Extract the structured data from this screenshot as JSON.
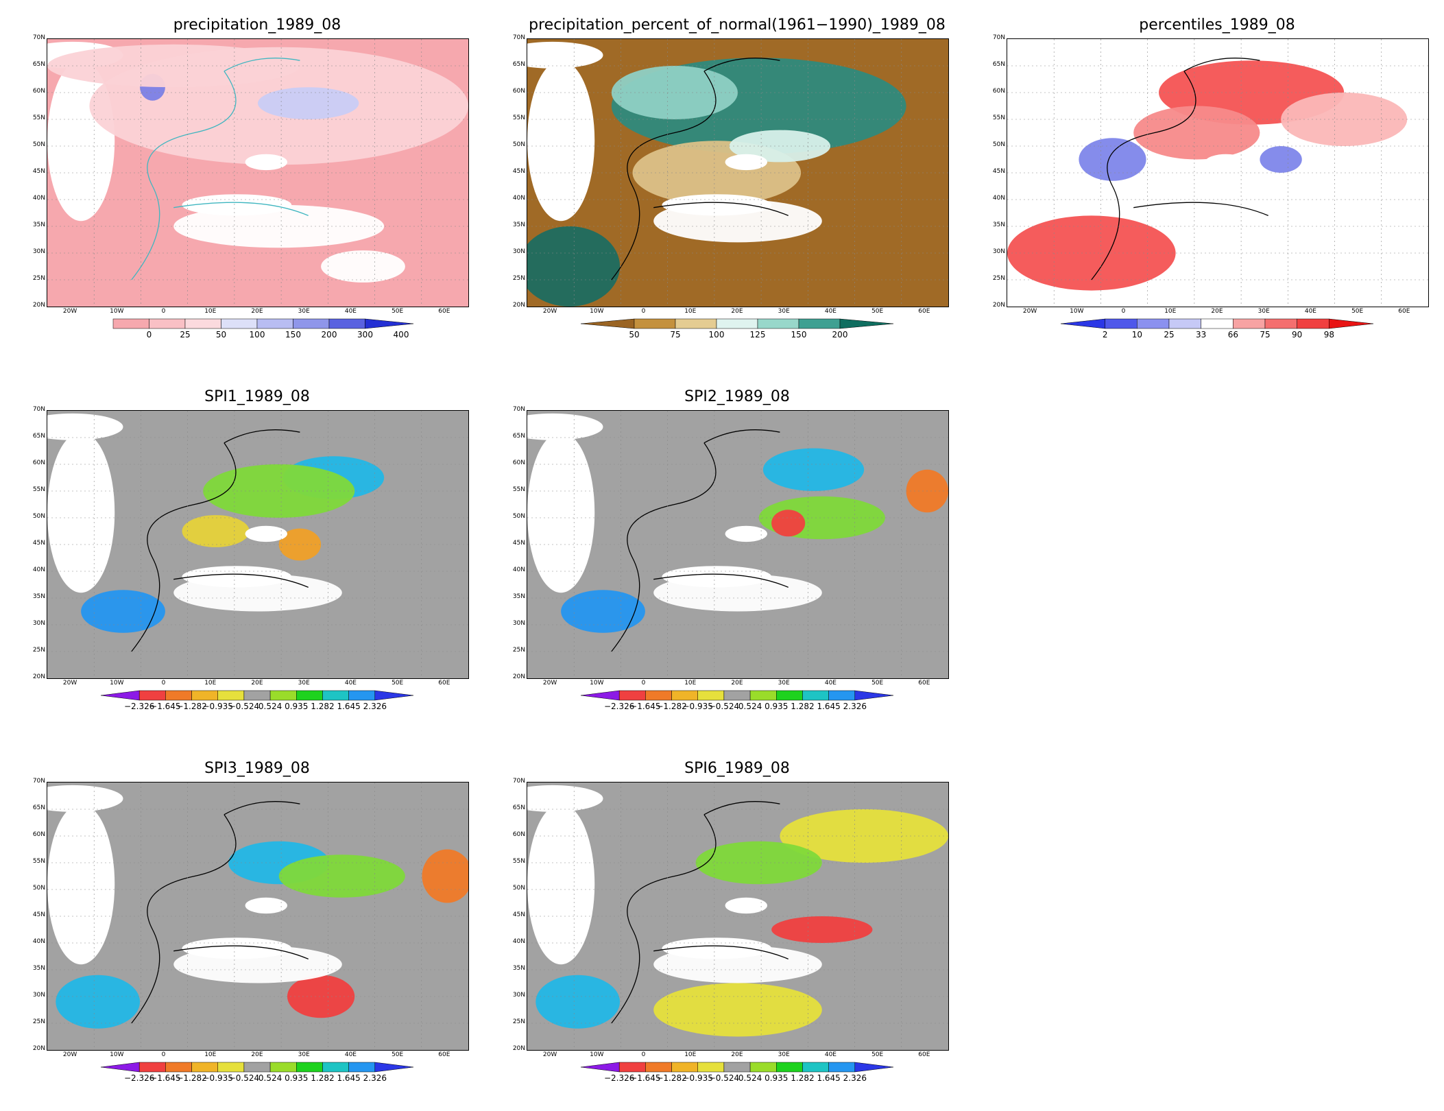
{
  "lat_ticks": [
    "70N",
    "65N",
    "60N",
    "55N",
    "50N",
    "45N",
    "40N",
    "35N",
    "30N",
    "25N",
    "20N"
  ],
  "lon_ticks": [
    "20W",
    "10W",
    "0",
    "10E",
    "20E",
    "30E",
    "40E",
    "50E",
    "60E"
  ],
  "panels": [
    {
      "id": "precipitation",
      "title": "precipitation_1989_08",
      "base": "#f6a8ae",
      "blobs": [
        [
          "#fbd2d6",
          0.55,
          0.25,
          0.45,
          0.22
        ],
        [
          "#c9ccf5",
          0.62,
          0.24,
          0.12,
          0.06
        ],
        [
          "#7b80e6",
          0.25,
          0.18,
          0.03,
          0.05
        ],
        [
          "#fbd2d6",
          0.3,
          0.1,
          0.3,
          0.08
        ],
        [
          "#ffffff",
          0.55,
          0.7,
          0.25,
          0.08
        ],
        [
          "#ffffff",
          0.75,
          0.85,
          0.1,
          0.06
        ]
      ],
      "colorbar": {
        "colors": [
          "#f6a8ae",
          "#f9c0c5",
          "#fbdade",
          "#dde0f8",
          "#b8bdf2",
          "#8f96ea",
          "#5a62e0",
          "#2430d4"
        ],
        "labels": [
          "0",
          "25",
          "50",
          "100",
          "150",
          "200",
          "300",
          "400"
        ],
        "arrow_left": false,
        "arrow_right": true
      }
    },
    {
      "id": "percent",
      "title": "precipitation_percent_of_normal(1961−1990)_1989_08",
      "base": "#a06a26",
      "blobs": [
        [
          "#2f8a7c",
          0.55,
          0.25,
          0.35,
          0.18
        ],
        [
          "#8fd0c4",
          0.35,
          0.2,
          0.15,
          0.1
        ],
        [
          "#dcc188",
          0.45,
          0.5,
          0.2,
          0.12
        ],
        [
          "#1d6d60",
          0.1,
          0.85,
          0.12,
          0.15
        ],
        [
          "#ffffff",
          0.5,
          0.68,
          0.2,
          0.08
        ],
        [
          "#d8f0ea",
          0.6,
          0.4,
          0.12,
          0.06
        ]
      ],
      "colorbar": {
        "colors": [
          "#9a6423",
          "#c4913e",
          "#e4cc92",
          "#dff3ef",
          "#98d7ca",
          "#3fa092",
          "#0f6e60"
        ],
        "labels": [
          "50",
          "75",
          "100",
          "125",
          "150",
          "200"
        ],
        "arrow_left": true,
        "arrow_right": true
      }
    },
    {
      "id": "percentiles",
      "title": "percentiles_1989_08",
      "base": "#ffffff",
      "blobs": [
        [
          "#f45353",
          0.58,
          0.2,
          0.22,
          0.12
        ],
        [
          "#f45353",
          0.2,
          0.8,
          0.2,
          0.14
        ],
        [
          "#7e86ea",
          0.25,
          0.45,
          0.08,
          0.08
        ],
        [
          "#f78a8a",
          0.45,
          0.35,
          0.15,
          0.1
        ],
        [
          "#7e86ea",
          0.65,
          0.45,
          0.05,
          0.05
        ],
        [
          "#fbb7b7",
          0.8,
          0.3,
          0.15,
          0.1
        ]
      ],
      "colorbar": {
        "colors": [
          "#2b37e6",
          "#4f58ea",
          "#8b91ef",
          "#c6c9f6",
          "#ffffff",
          "#f7a3a3",
          "#f46f6f",
          "#f04040",
          "#e81414"
        ],
        "labels": [
          "2",
          "10",
          "25",
          "33",
          "66",
          "75",
          "90",
          "98"
        ],
        "arrow_left": true,
        "arrow_right": true
      }
    },
    {
      "id": "spi1",
      "title": "SPI1_1989_08",
      "base": "#a2a2a2",
      "blobs": [
        [
          "#23b7e6",
          0.68,
          0.25,
          0.12,
          0.08
        ],
        [
          "#7fd93a",
          0.55,
          0.3,
          0.18,
          0.1
        ],
        [
          "#e6d23a",
          0.4,
          0.45,
          0.08,
          0.06
        ],
        [
          "#2596f0",
          0.18,
          0.75,
          0.1,
          0.08
        ],
        [
          "#ffffff",
          0.5,
          0.68,
          0.2,
          0.07
        ],
        [
          "#f0a028",
          0.6,
          0.5,
          0.05,
          0.06
        ]
      ],
      "colorbar": {
        "colors": [
          "#8c1ae6",
          "#f04040",
          "#f07a28",
          "#f0b428",
          "#e6e03c",
          "#a2a2a2",
          "#9adc2a",
          "#1ed21e",
          "#1ec4c4",
          "#2596f0",
          "#2b37e6"
        ],
        "labels": [
          "−2.326",
          "−1.645",
          "−1.282",
          "−0.935",
          "−0.524",
          "0.524",
          "0.935",
          "1.282",
          "1.645",
          "2.326"
        ],
        "arrow_left": true,
        "arrow_right": true
      }
    },
    {
      "id": "spi2",
      "title": "SPI2_1989_08",
      "base": "#a2a2a2",
      "blobs": [
        [
          "#23b7e6",
          0.68,
          0.22,
          0.12,
          0.08
        ],
        [
          "#7fd93a",
          0.7,
          0.4,
          0.15,
          0.08
        ],
        [
          "#f07a28",
          0.95,
          0.3,
          0.05,
          0.08
        ],
        [
          "#2596f0",
          0.18,
          0.75,
          0.1,
          0.08
        ],
        [
          "#ffffff",
          0.5,
          0.68,
          0.2,
          0.07
        ],
        [
          "#f04040",
          0.62,
          0.42,
          0.04,
          0.05
        ]
      ],
      "colorbar": {
        "colors": [
          "#8c1ae6",
          "#f04040",
          "#f07a28",
          "#f0b428",
          "#e6e03c",
          "#a2a2a2",
          "#9adc2a",
          "#1ed21e",
          "#1ec4c4",
          "#2596f0",
          "#2b37e6"
        ],
        "labels": [
          "−2.326",
          "−1.645",
          "−1.282",
          "−0.935",
          "−0.524",
          "0.524",
          "0.935",
          "1.282",
          "1.645",
          "2.326"
        ],
        "arrow_left": true,
        "arrow_right": true
      }
    },
    {
      "id": "spi3",
      "title": "SPI3_1989_08",
      "base": "#a2a2a2",
      "blobs": [
        [
          "#23b7e6",
          0.55,
          0.3,
          0.12,
          0.08
        ],
        [
          "#7fd93a",
          0.7,
          0.35,
          0.15,
          0.08
        ],
        [
          "#f07a28",
          0.95,
          0.35,
          0.06,
          0.1
        ],
        [
          "#23b7e6",
          0.12,
          0.82,
          0.1,
          0.1
        ],
        [
          "#f04040",
          0.65,
          0.8,
          0.08,
          0.08
        ],
        [
          "#ffffff",
          0.5,
          0.68,
          0.2,
          0.07
        ]
      ],
      "colorbar": {
        "colors": [
          "#8c1ae6",
          "#f04040",
          "#f07a28",
          "#f0b428",
          "#e6e03c",
          "#a2a2a2",
          "#9adc2a",
          "#1ed21e",
          "#1ec4c4",
          "#2596f0",
          "#2b37e6"
        ],
        "labels": [
          "−2.326",
          "−1.645",
          "−1.282",
          "−0.935",
          "−0.524",
          "0.524",
          "0.935",
          "1.282",
          "1.645",
          "2.326"
        ],
        "arrow_left": true,
        "arrow_right": true
      }
    },
    {
      "id": "spi6",
      "title": "SPI6_1989_08",
      "base": "#a2a2a2",
      "blobs": [
        [
          "#f04040",
          0.7,
          0.55,
          0.12,
          0.05
        ],
        [
          "#e6e03c",
          0.8,
          0.2,
          0.2,
          0.1
        ],
        [
          "#7fd93a",
          0.55,
          0.3,
          0.15,
          0.08
        ],
        [
          "#23b7e6",
          0.12,
          0.82,
          0.1,
          0.1
        ],
        [
          "#e6e03c",
          0.5,
          0.85,
          0.2,
          0.1
        ],
        [
          "#ffffff",
          0.5,
          0.68,
          0.2,
          0.07
        ]
      ],
      "colorbar": {
        "colors": [
          "#8c1ae6",
          "#f04040",
          "#f07a28",
          "#f0b428",
          "#e6e03c",
          "#a2a2a2",
          "#9adc2a",
          "#1ed21e",
          "#1ec4c4",
          "#2596f0",
          "#2b37e6"
        ],
        "labels": [
          "−2.326",
          "−1.645",
          "−1.282",
          "−0.935",
          "−0.524",
          "0.524",
          "0.935",
          "1.282",
          "1.645",
          "2.326"
        ],
        "arrow_left": true,
        "arrow_right": true
      }
    }
  ]
}
